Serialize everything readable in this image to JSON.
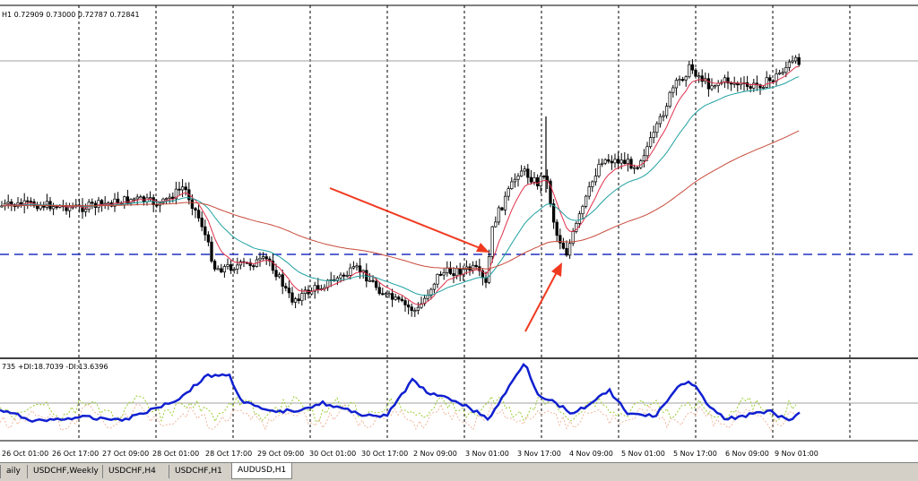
{
  "main_info": "H1  0.72909 0.73000 0.72787 0.72841",
  "indicator_info": "735 +DI:18.7039 -DI:13.6396",
  "time_labels": [
    "26 Oct 01:00",
    "26 Oct 17:00",
    "27 Oct 09:00",
    "28 Oct 01:00",
    "28 Oct 17:00",
    "29 Oct 09:00",
    "30 Oct 01:00",
    "30 Oct 17:00",
    "2 Nov 09:00",
    "3 Nov 01:00",
    "3 Nov 17:00",
    "4 Nov 09:00",
    "5 Nov 01:00",
    "5 Nov 17:00",
    "6 Nov 09:00",
    "9 Nov 01:00"
  ],
  "tabs": [
    {
      "label": "aily",
      "active": false
    },
    {
      "label": "USDCHF,Weekly",
      "active": false
    },
    {
      "label": "USDCHF,H4",
      "active": false
    },
    {
      "label": "USDCHF,H1",
      "active": false
    },
    {
      "label": "AUDUSD,H1",
      "active": true
    }
  ],
  "colors": {
    "ema_fast": "#e0304a",
    "ema_mid": "#20a0a0",
    "ema_slow": "#c84a3a",
    "support": "#2030c0",
    "adx": "#1020d0",
    "arrow": "#f03a20"
  }
}
